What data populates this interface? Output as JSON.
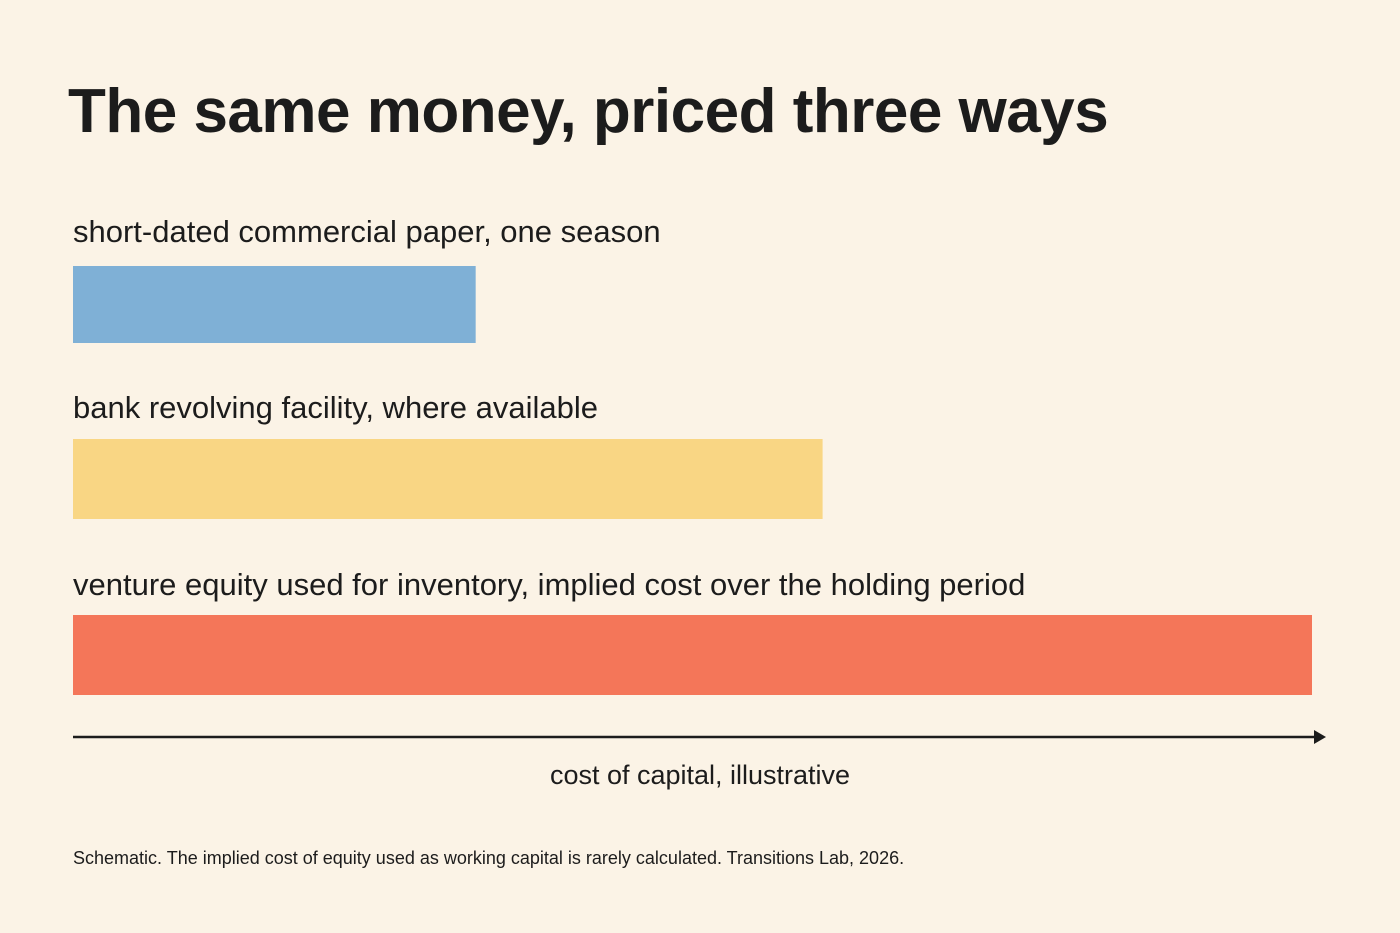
{
  "title": "The same money, priced three ways",
  "footnote": "Schematic. The implied cost of equity used as working capital is rarely calculated. Transitions Lab, 2026.",
  "chart_data": {
    "type": "bar",
    "orientation": "horizontal",
    "categories": [
      "short-dated commercial paper, one season",
      "bank revolving facility, where available",
      "venture equity used for inventory, implied cost over the holding period"
    ],
    "values": [
      0.325,
      0.605,
      1.0
    ],
    "value_note": "relative length only; no numeric scale is printed",
    "colors": [
      "#7fb0d6",
      "#f9d684",
      "#f47659"
    ],
    "xlabel": "cost of capital, illustrative",
    "ylabel": "",
    "axis_arrow": true,
    "grid": false,
    "legend": "none"
  }
}
